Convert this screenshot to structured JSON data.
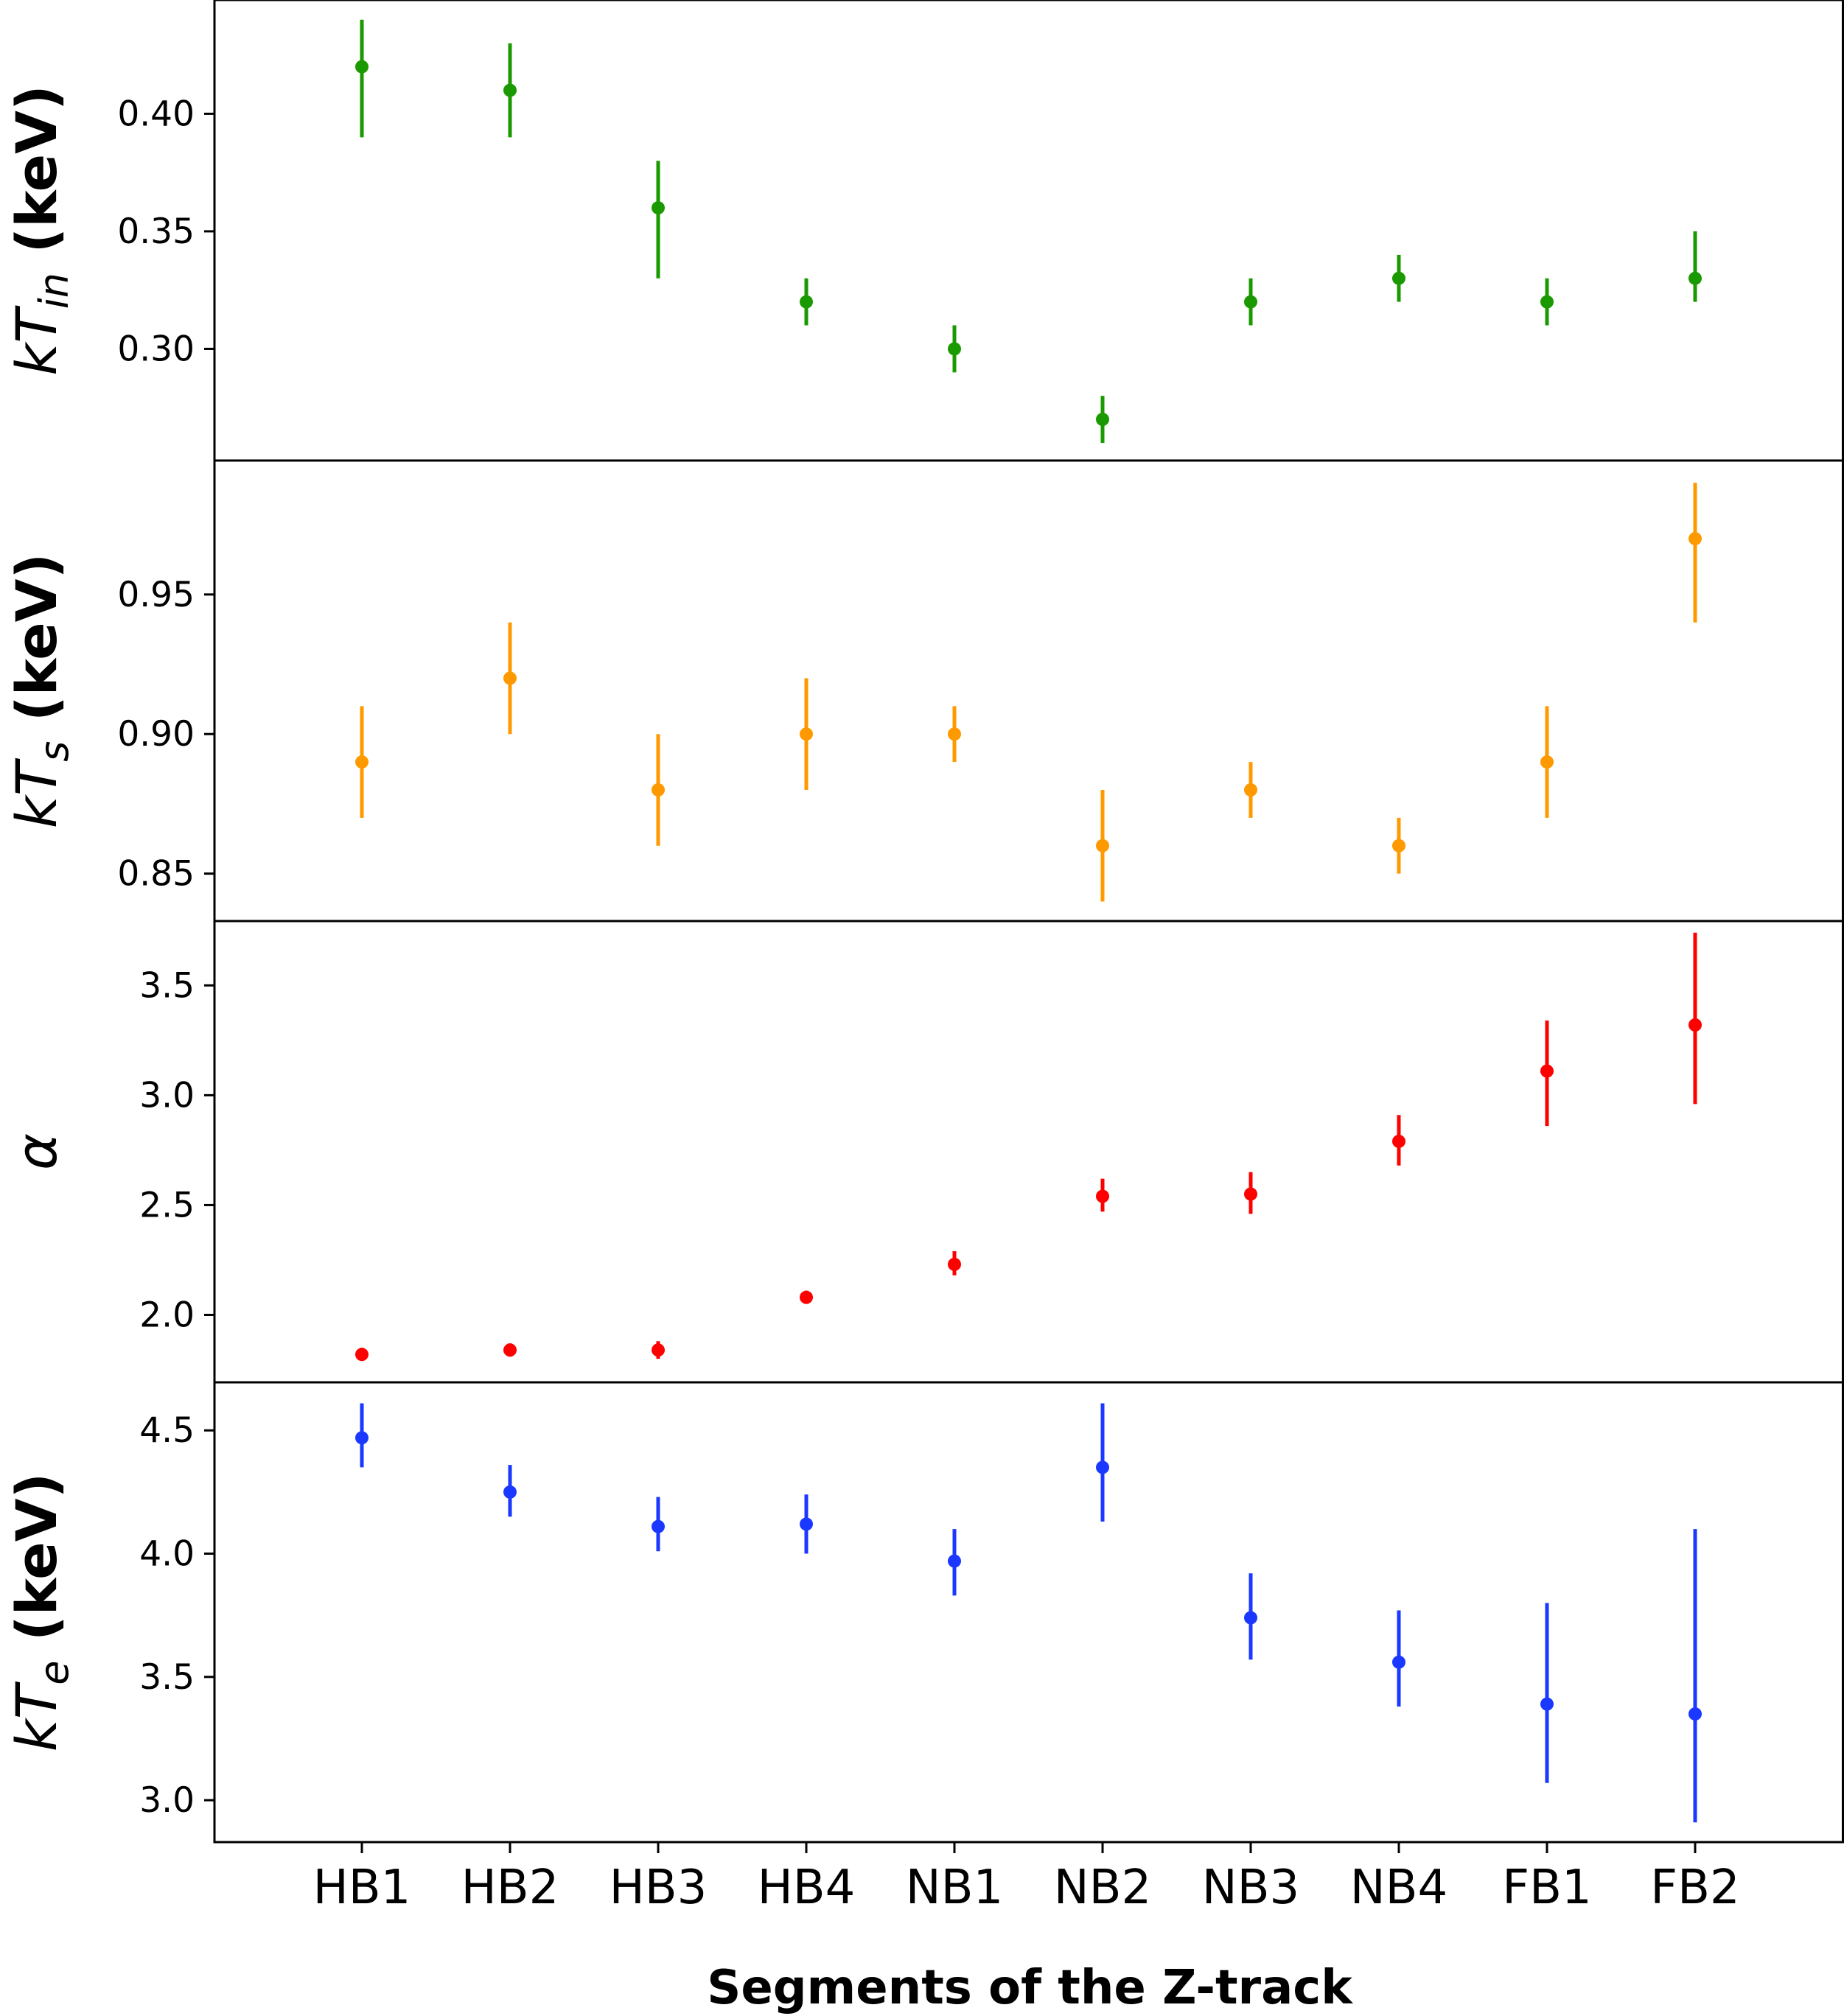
{
  "chart_data": [
    {
      "type": "scatter",
      "panel": "top",
      "ylabel": {
        "main": "kT",
        "sub": "in",
        "unit": "(keV)"
      },
      "color": "#1a9a00",
      "categories": [
        "HB1",
        "HB2",
        "HB3",
        "HB4",
        "NB1",
        "NB2",
        "NB3",
        "NB4",
        "FB1",
        "FB2"
      ],
      "values": [
        0.42,
        0.41,
        0.36,
        0.32,
        0.3,
        0.27,
        0.32,
        0.33,
        0.32,
        0.33
      ],
      "err_low": [
        0.39,
        0.39,
        0.33,
        0.31,
        0.29,
        0.26,
        0.31,
        0.32,
        0.31,
        0.32
      ],
      "err_high": [
        0.44,
        0.43,
        0.38,
        0.33,
        0.31,
        0.28,
        0.33,
        0.34,
        0.33,
        0.35
      ],
      "ylim": [
        0.2525,
        0.4484
      ],
      "yticks": [
        0.3,
        0.35,
        0.4
      ],
      "ytick_labels": [
        "0.30",
        "0.35",
        "0.40"
      ]
    },
    {
      "type": "scatter",
      "panel": "second",
      "ylabel": {
        "main": "kT",
        "sub": "s",
        "unit": "(keV)"
      },
      "color": "#ff9900",
      "categories": [
        "HB1",
        "HB2",
        "HB3",
        "HB4",
        "NB1",
        "NB2",
        "NB3",
        "NB4",
        "FB1",
        "FB2"
      ],
      "values": [
        0.89,
        0.92,
        0.88,
        0.9,
        0.9,
        0.86,
        0.88,
        0.86,
        0.89,
        0.97
      ],
      "err_low": [
        0.87,
        0.9,
        0.86,
        0.88,
        0.89,
        0.84,
        0.87,
        0.85,
        0.87,
        0.94
      ],
      "err_high": [
        0.91,
        0.94,
        0.9,
        0.92,
        0.91,
        0.88,
        0.89,
        0.87,
        0.91,
        0.99
      ],
      "ylim": [
        0.833,
        0.998
      ],
      "yticks": [
        0.85,
        0.9,
        0.95
      ],
      "ytick_labels": [
        "0.85",
        "0.90",
        "0.95"
      ]
    },
    {
      "type": "scatter",
      "panel": "third",
      "ylabel": {
        "main": "α",
        "sub": "",
        "unit": ""
      },
      "color": "#ff0000",
      "categories": [
        "HB1",
        "HB2",
        "HB3",
        "HB4",
        "NB1",
        "NB2",
        "NB3",
        "NB4",
        "FB1",
        "FB2"
      ],
      "values": [
        1.82,
        1.84,
        1.84,
        2.08,
        2.23,
        2.54,
        2.55,
        2.79,
        3.11,
        3.32
      ],
      "err_low": [
        1.79,
        1.81,
        1.8,
        2.05,
        2.18,
        2.47,
        2.46,
        2.68,
        2.86,
        2.96
      ],
      "err_high": [
        1.85,
        1.87,
        1.88,
        2.11,
        2.29,
        2.62,
        2.65,
        2.91,
        3.34,
        3.74
      ],
      "ylim": [
        1.693,
        3.793
      ],
      "yticks": [
        2.0,
        2.5,
        3.0,
        3.5
      ],
      "ytick_labels": [
        "2.0",
        "2.5",
        "3.0",
        "3.5"
      ]
    },
    {
      "type": "scatter",
      "panel": "bottom",
      "ylabel": {
        "main": "kT",
        "sub": "e",
        "unit": "(keV)"
      },
      "color": "#1a38ff",
      "categories": [
        "HB1",
        "HB2",
        "HB3",
        "HB4",
        "NB1",
        "NB2",
        "NB3",
        "NB4",
        "FB1",
        "FB2"
      ],
      "values": [
        4.47,
        4.25,
        4.11,
        4.12,
        3.97,
        4.35,
        3.74,
        3.56,
        3.39,
        3.35
      ],
      "err_low": [
        4.35,
        4.15,
        4.01,
        4.0,
        3.83,
        4.13,
        3.57,
        3.38,
        3.07,
        2.91
      ],
      "err_high": [
        4.61,
        4.36,
        4.23,
        4.24,
        4.1,
        4.61,
        3.92,
        3.77,
        3.8,
        4.1
      ],
      "ylim": [
        2.83,
        4.695
      ],
      "yticks": [
        3.0,
        3.5,
        4.0,
        4.5
      ],
      "ytick_labels": [
        "3.0",
        "3.5",
        "4.0",
        "4.5"
      ]
    }
  ],
  "xlabel": "Segments of the Z-track",
  "x_categories": [
    "HB1",
    "HB2",
    "HB3",
    "HB4",
    "NB1",
    "NB2",
    "NB3",
    "NB4",
    "FB1",
    "FB2"
  ]
}
